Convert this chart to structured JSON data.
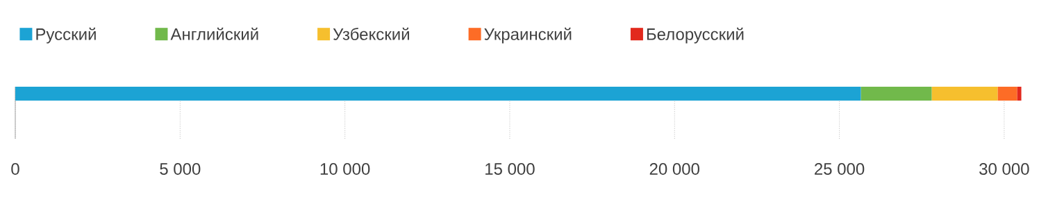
{
  "chart_data": {
    "type": "bar",
    "orientation": "horizontal",
    "stacked": true,
    "categories": [
      null
    ],
    "series": [
      {
        "name": "Русский",
        "color": "#1ca3d4",
        "values": [
          25650
        ]
      },
      {
        "name": "Английский",
        "color": "#71b94b",
        "values": [
          2150
        ]
      },
      {
        "name": "Узбекский",
        "color": "#f6bf2e",
        "values": [
          2000
        ]
      },
      {
        "name": "Украинский",
        "color": "#fd6c26",
        "values": [
          590
        ]
      },
      {
        "name": "Белорусский",
        "color": "#e2291d",
        "values": [
          130
        ]
      }
    ],
    "xlim": [
      0,
      30550
    ],
    "xticks": [
      0,
      {
        "value": 5000,
        "label": "5 000"
      },
      {
        "value": 10000,
        "label": "10 000"
      },
      {
        "value": 15000,
        "label": "15 000"
      },
      {
        "value": 20000,
        "label": "20 000"
      },
      {
        "value": 25000,
        "label": "25 000"
      },
      {
        "value": 30000,
        "label": "30 000"
      }
    ],
    "grid": "x",
    "legend": "top"
  }
}
